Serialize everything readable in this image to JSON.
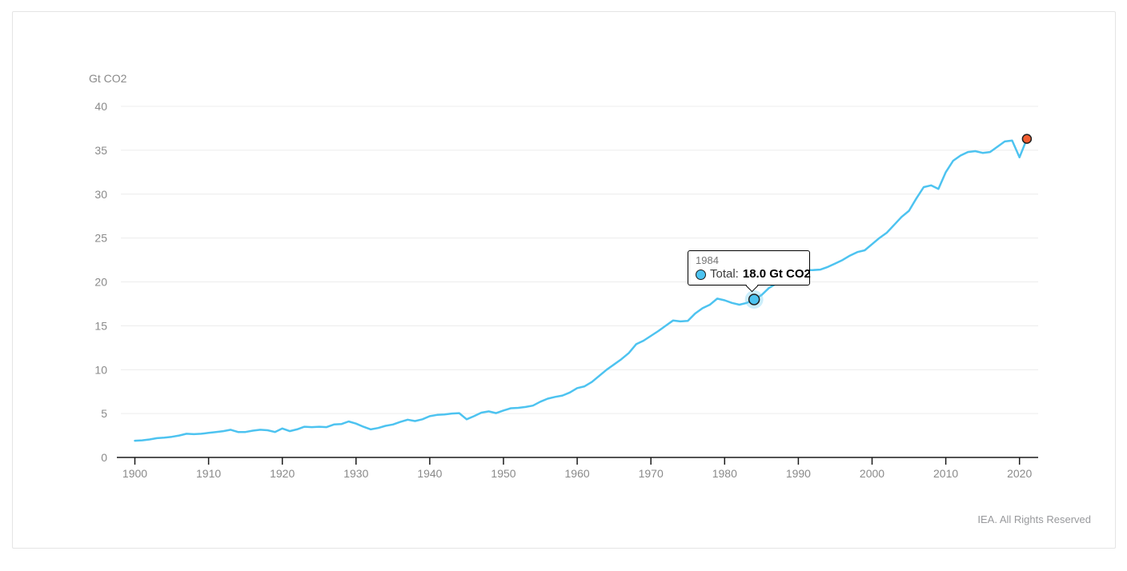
{
  "page": {
    "credit": "IEA. All Rights Reserved"
  },
  "tooltip": {
    "year": "1984",
    "series_label": "Total:",
    "value": "18.0 Gt CO2"
  },
  "colors": {
    "line": "#4dc3f0",
    "highlight_marker_fill": "#4dc3f0",
    "highlight_halo": "rgba(110,205,243,0.35)",
    "end_dot_fill": "#f25d31",
    "marker_stroke": "#1f1f1f",
    "grid": "#ececec",
    "axis": "#1a1a1a",
    "tick_label": "#8a8a8a"
  },
  "chart_data": {
    "type": "line",
    "title": "",
    "ylabel": "Gt CO2",
    "xlabel": "",
    "legend_position": "none",
    "grid": "horizontal",
    "xlim": [
      1899,
      2022
    ],
    "ylim": [
      0,
      40
    ],
    "xticks": [
      1900,
      1910,
      1920,
      1930,
      1940,
      1950,
      1960,
      1970,
      1980,
      1990,
      2000,
      2010,
      2020
    ],
    "yticks": [
      0,
      5,
      10,
      15,
      20,
      25,
      30,
      35,
      40
    ],
    "x": [
      1900,
      1901,
      1902,
      1903,
      1904,
      1905,
      1906,
      1907,
      1908,
      1909,
      1910,
      1911,
      1912,
      1913,
      1914,
      1915,
      1916,
      1917,
      1918,
      1919,
      1920,
      1921,
      1922,
      1923,
      1924,
      1925,
      1926,
      1927,
      1928,
      1929,
      1930,
      1931,
      1932,
      1933,
      1934,
      1935,
      1936,
      1937,
      1938,
      1939,
      1940,
      1941,
      1942,
      1943,
      1944,
      1945,
      1946,
      1947,
      1948,
      1949,
      1950,
      1951,
      1952,
      1953,
      1954,
      1955,
      1956,
      1957,
      1958,
      1959,
      1960,
      1961,
      1962,
      1963,
      1964,
      1965,
      1966,
      1967,
      1968,
      1969,
      1970,
      1971,
      1972,
      1973,
      1974,
      1975,
      1976,
      1977,
      1978,
      1979,
      1980,
      1981,
      1982,
      1983,
      1984,
      1985,
      1986,
      1987,
      1988,
      1989,
      1990,
      1991,
      1992,
      1993,
      1994,
      1995,
      1996,
      1997,
      1998,
      1999,
      2000,
      2001,
      2002,
      2003,
      2004,
      2005,
      2006,
      2007,
      2008,
      2009,
      2010,
      2011,
      2012,
      2013,
      2014,
      2015,
      2016,
      2017,
      2018,
      2019,
      2020,
      2021
    ],
    "series": [
      {
        "name": "Total",
        "unit": "Gt CO2",
        "values": [
          1.9,
          1.95,
          2.05,
          2.2,
          2.25,
          2.35,
          2.5,
          2.7,
          2.65,
          2.7,
          2.8,
          2.9,
          3.0,
          3.15,
          2.9,
          2.9,
          3.05,
          3.15,
          3.1,
          2.9,
          3.3,
          3.0,
          3.2,
          3.5,
          3.45,
          3.5,
          3.45,
          3.75,
          3.8,
          4.1,
          3.85,
          3.5,
          3.2,
          3.35,
          3.6,
          3.75,
          4.05,
          4.3,
          4.15,
          4.35,
          4.7,
          4.85,
          4.9,
          5.0,
          5.05,
          4.35,
          4.7,
          5.1,
          5.25,
          5.05,
          5.35,
          5.6,
          5.65,
          5.75,
          5.9,
          6.35,
          6.7,
          6.9,
          7.05,
          7.4,
          7.9,
          8.1,
          8.6,
          9.3,
          10.0,
          10.6,
          11.2,
          11.9,
          12.9,
          13.3,
          13.85,
          14.4,
          15.0,
          15.6,
          15.5,
          15.55,
          16.4,
          17.0,
          17.4,
          18.1,
          17.9,
          17.6,
          17.4,
          17.6,
          18.0,
          18.5,
          19.3,
          19.8,
          20.3,
          20.8,
          21.1,
          21.35,
          21.35,
          21.4,
          21.7,
          22.1,
          22.5,
          23.0,
          23.4,
          23.6,
          24.3,
          25.0,
          25.6,
          26.5,
          27.4,
          28.1,
          29.5,
          30.8,
          31.0,
          30.6,
          32.5,
          33.8,
          34.4,
          34.8,
          34.9,
          34.7,
          34.8,
          35.4,
          36.0,
          36.1,
          34.2,
          36.3
        ]
      }
    ],
    "highlight_point": {
      "year": 1984,
      "value": 18.0
    },
    "end_point": {
      "year": 2021,
      "value": 36.3
    }
  }
}
